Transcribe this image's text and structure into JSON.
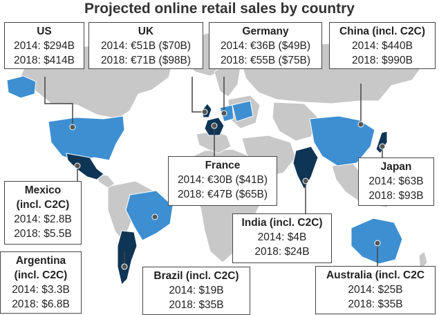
{
  "title": "Projected online retail sales by country",
  "colors": {
    "land": "#c8c8c8",
    "borders": "#ffffff",
    "highlight_light": "#3d8fd1",
    "highlight_dark": "#0f3555",
    "connector": "#444444",
    "marker": "#555555"
  },
  "callouts": {
    "us": {
      "name": "US",
      "line1": "2014: $294B",
      "line2": "2018: $414B",
      "shade": "light"
    },
    "uk": {
      "name": "UK",
      "line1": "2014: €51B ($70B)",
      "line2": "2018: €71B ($98B)",
      "shade": "dark"
    },
    "germany": {
      "name": "Germany",
      "line1": "2014: €36B ($49B)",
      "line2": "2018: €55B ($75B)",
      "shade": "light"
    },
    "china": {
      "name": "China (incl. C2C)",
      "line1": "2014: $440B",
      "line2": "2018: $990B",
      "shade": "light"
    },
    "france": {
      "name": "France",
      "line1": "2014: €30B ($41B)",
      "line2": "2018: €47B ($65B)",
      "shade": "dark"
    },
    "japan": {
      "name": "Japan",
      "line1": "2014: $63B",
      "line2": "2018: $93B",
      "shade": "dark"
    },
    "mexico": {
      "name_a": "Mexico",
      "name_b": "(incl. C2C)",
      "line1": "2014: $2.8B",
      "line2": "2018: $5.5B",
      "shade": "dark"
    },
    "india": {
      "name": "India (incl. C2C)",
      "line1": "2014: $4B",
      "line2": "2018: $24B",
      "shade": "dark"
    },
    "argentina": {
      "name_a": "Argentina",
      "name_b": "(incl. C2C)",
      "line1": "2014: $3.3B",
      "line2": "2018: $6.8B",
      "shade": "dark"
    },
    "brazil": {
      "name": "Brazil (incl. C2C)",
      "line1": "2014: $19B",
      "line2": "2018: $35B",
      "shade": "light"
    },
    "australia": {
      "name": "Australia (incl. C2C",
      "line1": "2014: $25B",
      "line2": "2018: $35B",
      "shade": "light"
    }
  }
}
